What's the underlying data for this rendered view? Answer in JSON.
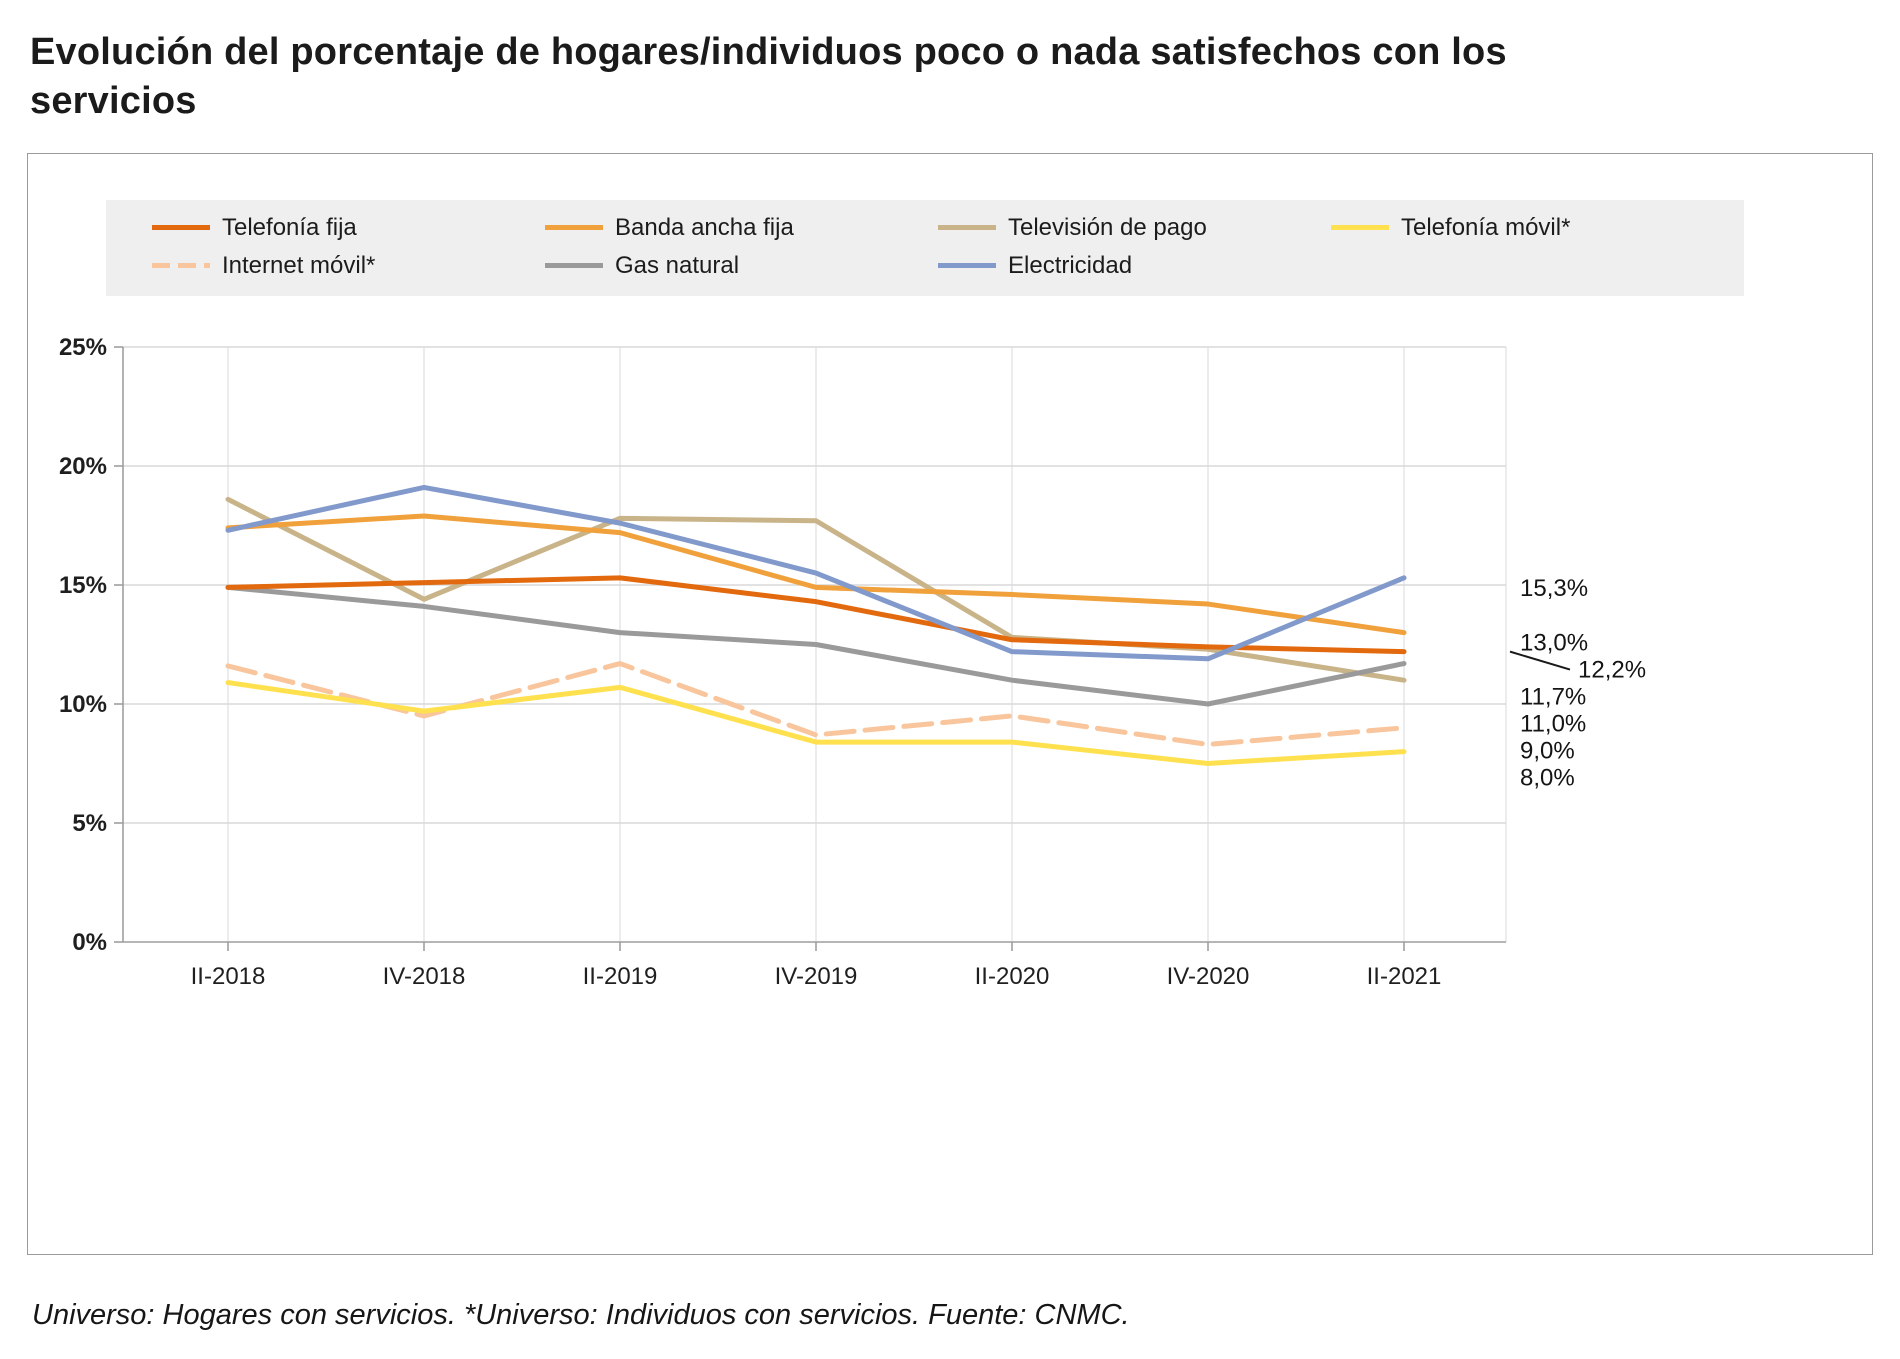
{
  "title": "Evolución del porcentaje de hogares/individuos poco o nada satisfechos con los servicios",
  "footer": "Universo: Hogares con servicios. *Universo: Individuos con servicios. Fuente: CNMC.",
  "chart_data": {
    "type": "line",
    "categories": [
      "II-2018",
      "IV-2018",
      "II-2019",
      "IV-2019",
      "II-2020",
      "IV-2020",
      "II-2021"
    ],
    "y_tick_labels": [
      "0%",
      "5%",
      "10%",
      "15%",
      "20%",
      "25%"
    ],
    "ylim": [
      0,
      25
    ],
    "grid": true,
    "legend_position": "top",
    "series": [
      {
        "name": "Telefonía fija",
        "color": "#E2690D",
        "dashed": false,
        "values": [
          14.9,
          15.1,
          15.3,
          14.3,
          12.7,
          12.4,
          12.2
        ],
        "end_label": "12,2%"
      },
      {
        "name": "Banda ancha fija",
        "color": "#F0A13C",
        "dashed": false,
        "values": [
          17.4,
          17.9,
          17.2,
          14.9,
          14.6,
          14.2,
          13.0
        ],
        "end_label": "13,0%"
      },
      {
        "name": "Televisión de pago",
        "color": "#C9B489",
        "dashed": false,
        "values": [
          18.6,
          14.4,
          17.8,
          17.7,
          12.8,
          12.3,
          11.0
        ],
        "end_label": "11,0%"
      },
      {
        "name": "Telefonía móvil*",
        "color": "#FFE14F",
        "dashed": false,
        "values": [
          10.9,
          9.7,
          10.7,
          8.4,
          8.4,
          7.5,
          8.0
        ],
        "end_label": "8,0%"
      },
      {
        "name": "Internet móvil*",
        "color": "#F8C59C",
        "dashed": true,
        "values": [
          11.6,
          9.5,
          11.7,
          8.7,
          9.5,
          8.3,
          9.0
        ],
        "end_label": "9,0%"
      },
      {
        "name": "Gas natural",
        "color": "#9A9A9A",
        "dashed": false,
        "values": [
          14.9,
          14.1,
          13.0,
          12.5,
          11.0,
          10.0,
          11.7
        ],
        "end_label": "11,7%"
      },
      {
        "name": "Electricidad",
        "color": "#8199CB",
        "dashed": false,
        "values": [
          17.3,
          19.1,
          17.6,
          15.5,
          12.2,
          11.9,
          15.3
        ],
        "end_label": "15,3%"
      }
    ]
  }
}
